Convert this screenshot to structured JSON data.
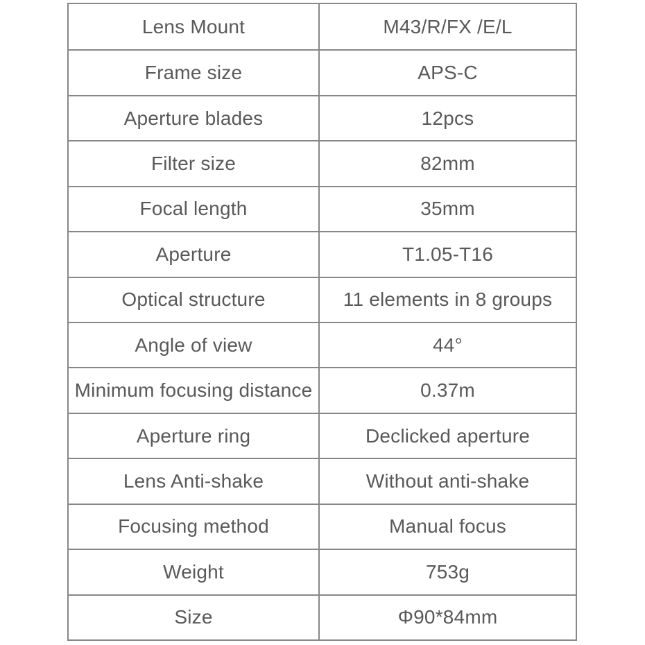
{
  "table": {
    "colors": {
      "text": "#595959",
      "border": "#878787",
      "background": "#ffffff"
    },
    "rows": [
      {
        "label": "Lens Mount",
        "value": "M43/R/FX /E/L"
      },
      {
        "label": "Frame size",
        "value": "APS-C"
      },
      {
        "label": "Aperture blades",
        "value": "12pcs"
      },
      {
        "label": "Filter size",
        "value": "82mm"
      },
      {
        "label": "Focal length",
        "value": "35mm"
      },
      {
        "label": "Aperture",
        "value": "T1.05-T16"
      },
      {
        "label": "Optical structure",
        "value": "11 elements in 8 groups"
      },
      {
        "label": "Angle of view",
        "value": "44°"
      },
      {
        "label": "Minimum focusing distance",
        "value": "0.37m"
      },
      {
        "label": "Aperture ring",
        "value": "Declicked aperture"
      },
      {
        "label": "Lens Anti-shake",
        "value": "Without anti-shake"
      },
      {
        "label": "Focusing method",
        "value": "Manual focus"
      },
      {
        "label": "Weight",
        "value": "753g"
      },
      {
        "label": "Size",
        "value": "Φ90*84mm"
      }
    ]
  }
}
